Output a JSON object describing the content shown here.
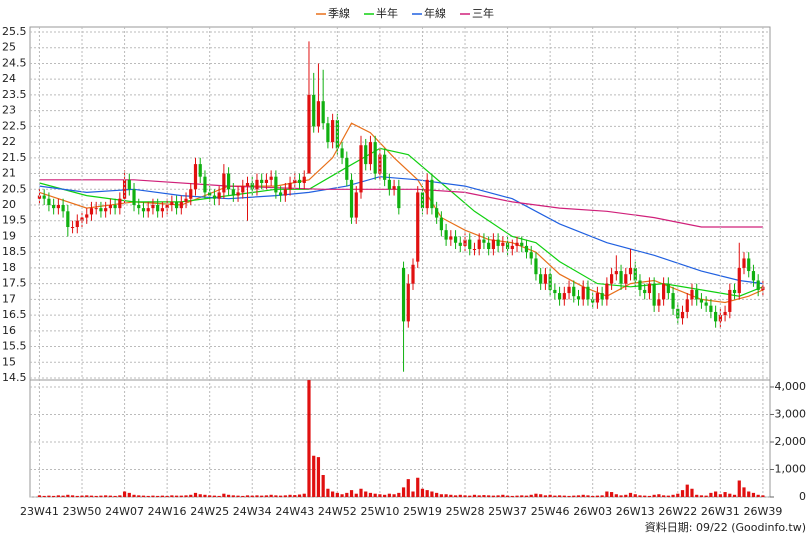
{
  "chart_data": [
    {
      "type": "candlestick",
      "legend": "top",
      "grid": true,
      "up_color": "#e01010",
      "down_color": "#10b010",
      "xlim": [
        -2,
        154.5
      ],
      "ylim": [
        14.5,
        25.5
      ],
      "yticks": [
        14.5,
        15,
        15.5,
        16,
        16.5,
        17,
        17.5,
        18,
        18.5,
        19,
        19.5,
        20,
        20.5,
        21,
        21.5,
        22,
        22.5,
        23,
        23.5,
        24,
        24.5,
        25,
        25.5
      ],
      "open": [
        20.2,
        20.3,
        20.2,
        20.0,
        19.9,
        20.0,
        19.8,
        19.3,
        19.3,
        19.5,
        19.6,
        19.7,
        19.9,
        19.9,
        19.8,
        19.9,
        20.0,
        19.9,
        20.2,
        20.8,
        20.5,
        20.0,
        19.9,
        19.8,
        19.9,
        20.0,
        19.8,
        19.9,
        20.0,
        20.1,
        19.9,
        20.1,
        20.2,
        20.5,
        21.3,
        20.9,
        20.4,
        20.3,
        20.2,
        20.4,
        21.0,
        20.5,
        20.3,
        20.4,
        20.6,
        20.7,
        20.5,
        20.8,
        20.7,
        20.8,
        20.9,
        20.4,
        20.3,
        20.5,
        20.7,
        20.8,
        20.7,
        21.0,
        23.5,
        22.5,
        23.3,
        22.6,
        22.0,
        22.7,
        21.8,
        21.5,
        20.8,
        19.6,
        20.4,
        21.9,
        21.3,
        22.0,
        21.0,
        21.6,
        20.8,
        20.5,
        20.6,
        18.0,
        16.3,
        17.5,
        18.2,
        20.4,
        19.9,
        20.8,
        19.9,
        19.6,
        19.2,
        18.9,
        19.0,
        18.8,
        18.7,
        18.9,
        18.6,
        18.6,
        18.9,
        18.8,
        18.6,
        18.9,
        18.7,
        18.8,
        18.6,
        18.7,
        18.8,
        18.7,
        18.5,
        18.3,
        17.8,
        17.5,
        17.8,
        17.3,
        17.2,
        17.0,
        17.2,
        17.4,
        17.1,
        17.0,
        17.4,
        17.0,
        16.9,
        17.2,
        17.0,
        17.5,
        17.8,
        17.9,
        17.5,
        17.8,
        18.0,
        17.6,
        17.3,
        17.2,
        17.5,
        16.8,
        17.0,
        17.5,
        17.2,
        16.7,
        16.4,
        16.6,
        17.0,
        17.3,
        17.0,
        16.9,
        16.8,
        16.6,
        16.3,
        16.5,
        16.6,
        17.3,
        17.2,
        18.0,
        18.3,
        17.9,
        17.6,
        17.3
      ],
      "high": [
        20.5,
        20.5,
        20.4,
        20.2,
        20.2,
        20.2,
        20.0,
        19.5,
        19.7,
        19.8,
        19.9,
        20.1,
        20.1,
        20.1,
        20.1,
        20.2,
        20.2,
        20.4,
        21.1,
        21.0,
        20.7,
        20.2,
        20.1,
        20.1,
        20.2,
        20.2,
        20.1,
        20.2,
        20.3,
        20.3,
        20.3,
        20.4,
        20.7,
        21.5,
        21.5,
        21.1,
        20.6,
        20.5,
        20.6,
        21.3,
        21.2,
        20.7,
        20.6,
        20.8,
        20.9,
        20.9,
        21.0,
        21.0,
        21.0,
        21.1,
        21.1,
        20.6,
        20.7,
        20.9,
        21.0,
        21.0,
        21.1,
        25.2,
        24.2,
        24.5,
        24.3,
        22.8,
        22.9,
        22.9,
        22.0,
        21.7,
        21.0,
        20.6,
        22.2,
        22.1,
        22.2,
        22.2,
        21.8,
        21.8,
        21.0,
        20.8,
        20.8,
        18.2,
        17.8,
        18.3,
        20.6,
        20.6,
        21.0,
        21.0,
        20.1,
        19.8,
        19.4,
        19.2,
        19.2,
        19.0,
        19.1,
        19.1,
        18.8,
        19.1,
        19.1,
        19.0,
        19.1,
        19.1,
        19.0,
        19.0,
        18.9,
        19.0,
        19.0,
        18.9,
        18.7,
        18.5,
        18.0,
        18.0,
        18.0,
        17.5,
        17.4,
        17.4,
        17.6,
        17.6,
        17.3,
        17.6,
        17.6,
        17.2,
        17.4,
        17.4,
        17.7,
        18.0,
        18.4,
        18.1,
        18.0,
        18.6,
        18.2,
        17.8,
        17.5,
        17.7,
        17.7,
        17.2,
        17.7,
        17.7,
        17.4,
        16.9,
        16.8,
        17.2,
        17.5,
        17.5,
        17.2,
        17.1,
        17.0,
        16.8,
        16.7,
        16.8,
        17.5,
        17.5,
        18.8,
        18.5,
        18.5,
        18.1,
        17.8,
        17.6
      ],
      "low": [
        20.0,
        20.0,
        19.8,
        19.7,
        19.7,
        19.6,
        19.0,
        19.1,
        19.1,
        19.3,
        19.4,
        19.5,
        19.7,
        19.6,
        19.6,
        19.7,
        19.7,
        19.7,
        20.0,
        20.3,
        19.8,
        19.7,
        19.6,
        19.6,
        19.7,
        19.6,
        19.6,
        19.7,
        19.8,
        19.7,
        19.7,
        19.9,
        20.0,
        20.3,
        20.7,
        20.2,
        20.1,
        20.0,
        20.0,
        20.2,
        20.3,
        20.1,
        20.1,
        20.2,
        19.5,
        20.3,
        20.3,
        20.5,
        20.5,
        20.6,
        20.2,
        20.1,
        20.1,
        20.3,
        20.5,
        20.5,
        20.5,
        21.0,
        22.3,
        22.3,
        22.4,
        21.8,
        21.8,
        21.6,
        21.3,
        20.6,
        19.4,
        19.4,
        20.2,
        21.1,
        21.1,
        20.8,
        20.8,
        20.6,
        20.3,
        20.3,
        19.7,
        14.7,
        16.1,
        17.3,
        18.0,
        19.7,
        19.7,
        19.7,
        19.4,
        19.0,
        18.7,
        18.7,
        18.6,
        18.5,
        18.5,
        18.4,
        18.4,
        18.4,
        18.6,
        18.4,
        18.4,
        18.5,
        18.5,
        18.4,
        18.4,
        18.5,
        18.5,
        18.3,
        18.1,
        17.6,
        17.3,
        17.3,
        17.1,
        17.0,
        16.8,
        16.8,
        17.0,
        16.9,
        16.8,
        16.8,
        16.8,
        16.7,
        16.7,
        16.8,
        16.8,
        17.3,
        17.6,
        17.3,
        17.3,
        17.6,
        17.4,
        17.1,
        17.0,
        17.0,
        16.6,
        16.6,
        16.8,
        17.0,
        16.5,
        16.2,
        16.2,
        16.4,
        16.8,
        16.8,
        16.7,
        16.6,
        16.4,
        16.1,
        16.1,
        16.3,
        16.4,
        17.0,
        17.0,
        17.8,
        17.7,
        17.4,
        17.1,
        17.1
      ],
      "close": [
        20.3,
        20.2,
        20.0,
        19.9,
        20.0,
        19.8,
        19.3,
        19.3,
        19.5,
        19.6,
        19.7,
        19.9,
        19.9,
        19.8,
        19.9,
        20.0,
        19.9,
        20.2,
        20.8,
        20.5,
        20.0,
        19.9,
        19.8,
        19.9,
        20.0,
        19.8,
        19.9,
        20.0,
        20.1,
        19.9,
        20.1,
        20.2,
        20.5,
        21.3,
        20.9,
        20.4,
        20.3,
        20.2,
        20.4,
        21.0,
        20.5,
        20.3,
        20.4,
        20.6,
        20.7,
        20.5,
        20.8,
        20.7,
        20.8,
        20.9,
        20.4,
        20.3,
        20.5,
        20.7,
        20.8,
        20.7,
        20.9,
        23.5,
        22.5,
        23.3,
        22.6,
        22.0,
        22.7,
        21.8,
        21.5,
        20.8,
        19.6,
        20.4,
        21.9,
        21.3,
        22.0,
        21.0,
        21.6,
        20.8,
        20.5,
        20.6,
        19.9,
        16.3,
        17.5,
        18.1,
        20.4,
        19.9,
        20.8,
        19.9,
        19.6,
        19.2,
        18.9,
        19.0,
        18.8,
        18.7,
        18.9,
        18.6,
        18.6,
        18.9,
        18.8,
        18.6,
        18.9,
        18.7,
        18.8,
        18.6,
        18.7,
        18.8,
        18.7,
        18.5,
        18.3,
        17.8,
        17.5,
        17.8,
        17.3,
        17.2,
        17.0,
        17.2,
        17.4,
        17.1,
        17.0,
        17.4,
        17.0,
        16.9,
        17.2,
        17.0,
        17.5,
        17.8,
        17.9,
        17.5,
        17.8,
        18.0,
        17.6,
        17.3,
        17.2,
        17.5,
        16.8,
        17.0,
        17.5,
        17.2,
        16.7,
        16.4,
        16.6,
        17.0,
        17.3,
        17.0,
        16.9,
        16.8,
        16.6,
        16.3,
        16.5,
        16.6,
        17.3,
        17.2,
        18.0,
        18.3,
        17.9,
        17.6,
        17.3,
        17.4
      ],
      "lines": [
        {
          "name": "季線",
          "color": "#e8701a",
          "x": [
            0,
            10,
            20,
            30,
            40,
            50,
            57,
            62,
            66,
            70,
            75,
            80,
            85,
            90,
            95,
            100,
            105,
            110,
            115,
            120,
            125,
            130,
            135,
            140,
            145,
            150,
            153
          ],
          "values": [
            20.4,
            19.9,
            20.1,
            20.0,
            20.6,
            20.6,
            20.8,
            21.5,
            22.6,
            22.3,
            21.5,
            20.8,
            19.6,
            19.2,
            18.9,
            18.8,
            18.5,
            17.8,
            17.4,
            17.1,
            17.5,
            17.6,
            17.3,
            17.0,
            16.9,
            17.1,
            17.3
          ]
        },
        {
          "name": "半年",
          "color": "#10d010",
          "x": [
            0,
            10,
            20,
            30,
            40,
            50,
            57,
            65,
            72,
            78,
            85,
            92,
            100,
            105,
            110,
            118,
            125,
            132,
            140,
            148,
            153
          ],
          "values": [
            20.7,
            20.3,
            20.1,
            20.1,
            20.3,
            20.5,
            20.5,
            21.2,
            21.8,
            21.6,
            20.7,
            19.8,
            19.0,
            18.8,
            18.2,
            17.5,
            17.4,
            17.5,
            17.3,
            17.1,
            17.4
          ]
        },
        {
          "name": "年線",
          "color": "#2060e0",
          "x": [
            0,
            10,
            20,
            30,
            40,
            50,
            57,
            65,
            72,
            80,
            90,
            100,
            110,
            120,
            130,
            140,
            148,
            153
          ],
          "values": [
            20.6,
            20.4,
            20.5,
            20.3,
            20.2,
            20.3,
            20.4,
            20.6,
            20.9,
            20.8,
            20.6,
            20.2,
            19.4,
            18.8,
            18.4,
            17.9,
            17.6,
            17.5
          ]
        },
        {
          "name": "三年",
          "color": "#d0207a",
          "x": [
            0,
            20,
            40,
            60,
            80,
            90,
            100,
            110,
            120,
            130,
            140,
            153
          ],
          "values": [
            20.8,
            20.8,
            20.6,
            20.5,
            20.5,
            20.4,
            20.1,
            19.9,
            19.8,
            19.6,
            19.3,
            19.3
          ]
        }
      ]
    },
    {
      "type": "bar",
      "color": "#e01010",
      "y_axis": "right",
      "grid": true,
      "xlim": [
        -2,
        154.5
      ],
      "ylim": [
        0,
        4250
      ],
      "yticks": [
        0,
        {
          "value": 1000,
          "label": "1,000"
        },
        {
          "value": 2000,
          "label": "2,000"
        },
        {
          "value": 3000,
          "label": "3,000"
        },
        {
          "value": 4000,
          "label": "4,000"
        }
      ],
      "xticks": [
        {
          "value": 0,
          "label": "23W41"
        },
        {
          "value": 9,
          "label": "23W50"
        },
        {
          "value": 18,
          "label": "24W07"
        },
        {
          "value": 27,
          "label": "24W16"
        },
        {
          "value": 36,
          "label": "24W25"
        },
        {
          "value": 45,
          "label": "24W34"
        },
        {
          "value": 54,
          "label": "24W43"
        },
        {
          "value": 63,
          "label": "24W52"
        },
        {
          "value": 72,
          "label": "25W10"
        },
        {
          "value": 81,
          "label": "25W19"
        },
        {
          "value": 90,
          "label": "25W28"
        },
        {
          "value": 99,
          "label": "25W37"
        },
        {
          "value": 108,
          "label": "25W46"
        },
        {
          "value": 117,
          "label": "26W03"
        },
        {
          "value": 126,
          "label": "26W13"
        },
        {
          "value": 135,
          "label": "26W22"
        },
        {
          "value": 144,
          "label": "26W31"
        },
        {
          "value": 153,
          "label": "26W39"
        }
      ],
      "values": [
        60,
        40,
        50,
        40,
        60,
        50,
        80,
        60,
        40,
        50,
        60,
        50,
        40,
        50,
        60,
        50,
        40,
        60,
        200,
        150,
        80,
        60,
        50,
        40,
        50,
        40,
        50,
        40,
        60,
        50,
        50,
        60,
        80,
        150,
        100,
        80,
        60,
        50,
        40,
        120,
        80,
        60,
        50,
        40,
        60,
        50,
        60,
        50,
        60,
        80,
        60,
        50,
        60,
        80,
        70,
        90,
        120,
        4250,
        1500,
        1450,
        800,
        300,
        200,
        150,
        100,
        150,
        250,
        120,
        300,
        200,
        150,
        120,
        100,
        80,
        120,
        100,
        150,
        350,
        650,
        200,
        700,
        300,
        250,
        200,
        150,
        100,
        100,
        80,
        60,
        80,
        60,
        50,
        80,
        60,
        70,
        60,
        50,
        60,
        80,
        50,
        40,
        50,
        60,
        50,
        80,
        120,
        100,
        60,
        80,
        50,
        60,
        50,
        40,
        50,
        60,
        80,
        60,
        40,
        50,
        60,
        200,
        180,
        100,
        60,
        80,
        150,
        100,
        60,
        50,
        40,
        80,
        100,
        60,
        50,
        80,
        120,
        250,
        450,
        300,
        80,
        60,
        50,
        150,
        200,
        100,
        180,
        120,
        80,
        600,
        350,
        200,
        150,
        80,
        60
      ]
    }
  ],
  "source": "資料日期: 09/22 (Goodinfo.tw)"
}
